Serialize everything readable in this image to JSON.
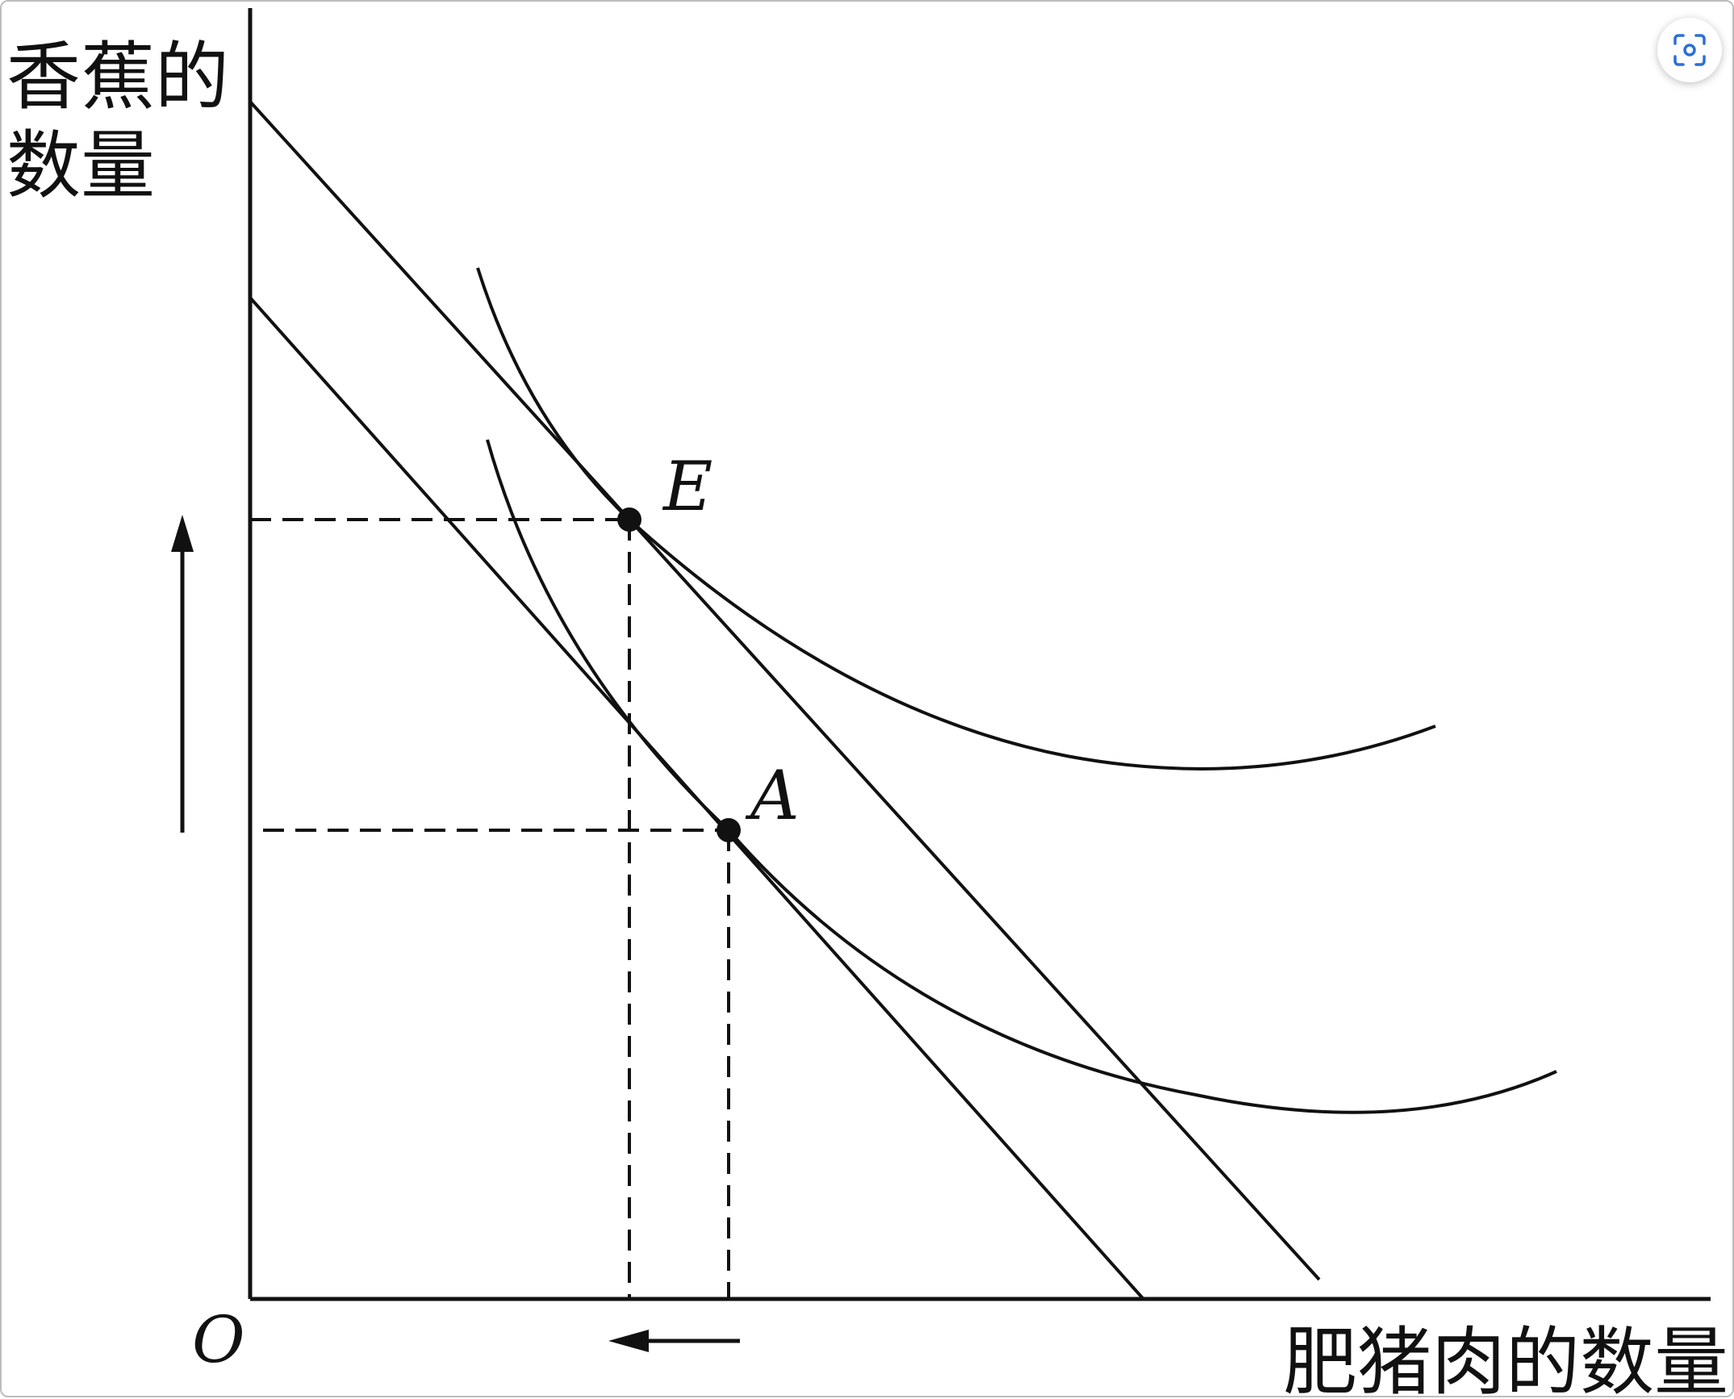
{
  "diagram": {
    "y_axis_label_line1": "香蕉的",
    "y_axis_label_line2": "数量",
    "x_axis_label": "肥猪肉的数量",
    "origin_label": "O",
    "point_e_label": "E",
    "point_a_label": "A"
  },
  "toolbar": {
    "scan_icon": "scan-icon"
  },
  "colors": {
    "ink": "#111111",
    "background": "#ffffff",
    "frame_border": "#bdbdbd"
  }
}
